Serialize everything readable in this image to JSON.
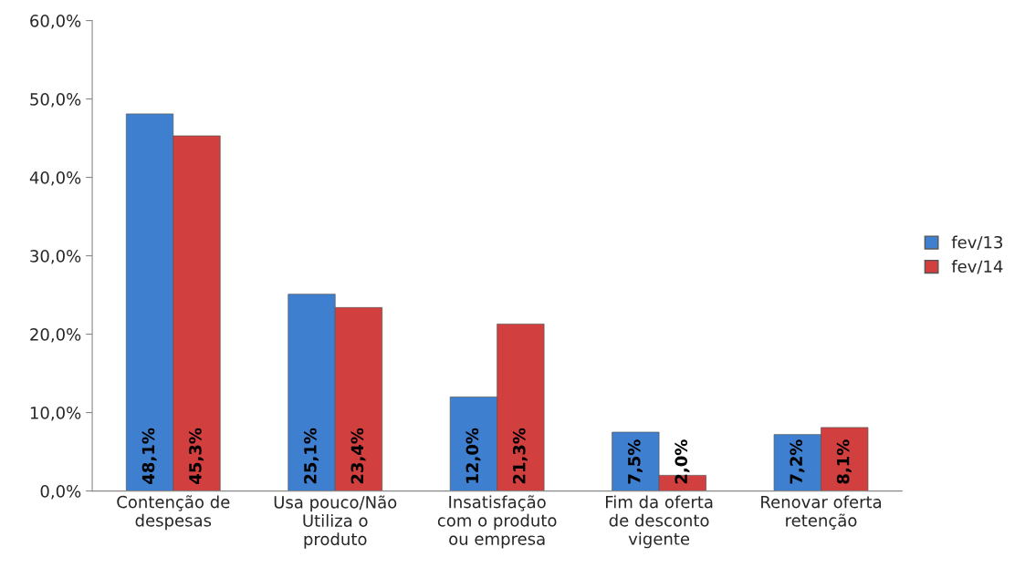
{
  "chart_data": {
    "type": "bar",
    "categories": [
      "Contenção de\ndespesas",
      "Usa pouco/Não\nUtiliza o\nproduto",
      "Insatisfação\ncom o produto\nou empresa",
      "Fim da oferta\nde desconto\nvigente",
      "Renovar oferta\nretenção"
    ],
    "series": [
      {
        "name": "fev/13",
        "color": "#3f7fcf",
        "values": [
          48.1,
          25.1,
          12.0,
          7.5,
          7.2
        ],
        "value_labels": [
          "48,1%",
          "25,1%",
          "12,0%",
          "7,5%",
          "7,2%"
        ]
      },
      {
        "name": "fev/14",
        "color": "#d23f3f",
        "values": [
          45.3,
          23.4,
          21.3,
          2.0,
          8.1
        ],
        "value_labels": [
          "45,3%",
          "23,4%",
          "21,3%",
          "2,0%",
          "8,1%"
        ]
      }
    ],
    "ylim": [
      0,
      60
    ],
    "yticks": [
      {
        "value": 0,
        "label": "0,0%"
      },
      {
        "value": 10,
        "label": "10,0%"
      },
      {
        "value": 20,
        "label": "20,0%"
      },
      {
        "value": 30,
        "label": "30,0%"
      },
      {
        "value": 40,
        "label": "40,0%"
      },
      {
        "value": 50,
        "label": "50,0%"
      },
      {
        "value": 60,
        "label": "60,0%"
      }
    ],
    "grid": false,
    "legend": "right"
  }
}
